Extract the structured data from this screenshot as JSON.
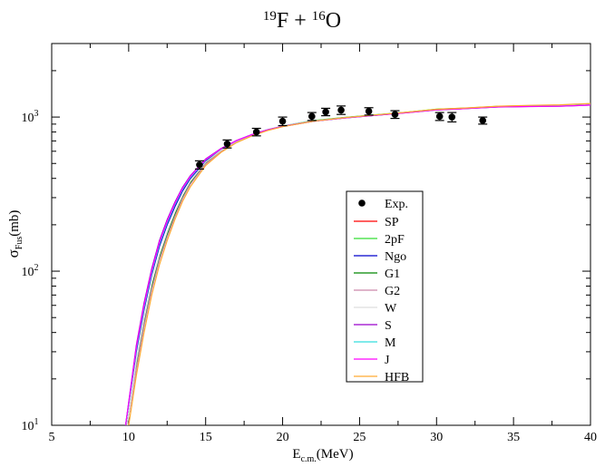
{
  "chart_data": {
    "type": "line",
    "title": {
      "mass_a": "19",
      "element_a": "F",
      "plus": " + ",
      "mass_b": "16",
      "element_b": "O"
    },
    "xlabel": {
      "main": "E",
      "sub": "c.m.",
      "unit": "(MeV)"
    },
    "ylabel": {
      "main": "σ",
      "sub": "Fus",
      "unit": "(mb)"
    },
    "xlim": [
      5,
      40
    ],
    "ylim": [
      10,
      3000
    ],
    "yscale": "log",
    "x_ticks": [
      5,
      10,
      15,
      20,
      25,
      30,
      35,
      40
    ],
    "x_tick_labels": [
      "5",
      "10",
      "15",
      "20",
      "25",
      "30",
      "35",
      "40"
    ],
    "y_ticks": [
      {
        "value": 10,
        "base": "10",
        "exp": "1"
      },
      {
        "value": 100,
        "base": "10",
        "exp": "2"
      },
      {
        "value": 1000,
        "base": "10",
        "exp": "3"
      }
    ],
    "legend_placement": "center-right",
    "experimental": {
      "name": "Exp.",
      "points": [
        {
          "x": 14.6,
          "y": 490,
          "err": 30
        },
        {
          "x": 16.4,
          "y": 670,
          "err": 40
        },
        {
          "x": 18.3,
          "y": 800,
          "err": 45
        },
        {
          "x": 20.0,
          "y": 940,
          "err": 60
        },
        {
          "x": 21.9,
          "y": 1010,
          "err": 60
        },
        {
          "x": 22.8,
          "y": 1080,
          "err": 60
        },
        {
          "x": 23.8,
          "y": 1110,
          "err": 70
        },
        {
          "x": 25.6,
          "y": 1090,
          "err": 60
        },
        {
          "x": 27.3,
          "y": 1040,
          "err": 60
        },
        {
          "x": 30.2,
          "y": 1010,
          "err": 60
        },
        {
          "x": 31.0,
          "y": 1000,
          "err": 70
        },
        {
          "x": 33.0,
          "y": 950,
          "err": 50
        }
      ]
    },
    "series": [
      {
        "name": "SP",
        "color": "#ff0000",
        "x": [
          9.9,
          10.5,
          11,
          11.5,
          12,
          12.5,
          13,
          13.5,
          14,
          15,
          16,
          17,
          18,
          19,
          20,
          22,
          24,
          26,
          28,
          30,
          32,
          34,
          36,
          38,
          40
        ],
        "y": [
          10,
          24,
          45,
          78,
          120,
          170,
          230,
          300,
          370,
          500,
          600,
          690,
          760,
          820,
          870,
          940,
          990,
          1030,
          1070,
          1120,
          1140,
          1170,
          1180,
          1180,
          1200
        ]
      },
      {
        "name": "2pF",
        "color": "#33dd33",
        "x": [
          9.9,
          10.5,
          11,
          11.5,
          12,
          12.5,
          13,
          13.5,
          14,
          15,
          16,
          17,
          18,
          19,
          20,
          22,
          24,
          26,
          28,
          30,
          32,
          34,
          36,
          38,
          40
        ],
        "y": [
          10,
          25,
          47,
          80,
          124,
          175,
          236,
          306,
          376,
          505,
          605,
          695,
          765,
          825,
          875,
          950,
          995,
          1035,
          1075,
          1125,
          1145,
          1175,
          1185,
          1190,
          1210
        ]
      },
      {
        "name": "Ngo",
        "color": "#0000cc",
        "x": [
          9.8,
          10.5,
          11,
          11.5,
          12,
          12.5,
          13,
          13.5,
          14,
          15,
          16,
          17,
          18,
          19,
          20,
          22,
          24,
          26,
          28,
          30,
          32,
          34,
          36,
          38,
          40
        ],
        "y": [
          10,
          30,
          56,
          95,
          145,
          200,
          262,
          332,
          398,
          520,
          615,
          700,
          768,
          826,
          872,
          942,
          988,
          1028,
          1068,
          1116,
          1138,
          1165,
          1175,
          1180,
          1200
        ]
      },
      {
        "name": "G1",
        "color": "#008800",
        "x": [
          9.9,
          10.5,
          11,
          11.5,
          12,
          12.5,
          13,
          13.5,
          14,
          15,
          16,
          17,
          18,
          19,
          20,
          22,
          24,
          26,
          28,
          30,
          32,
          34,
          36,
          38,
          40
        ],
        "y": [
          10,
          24,
          46,
          79,
          122,
          172,
          233,
          303,
          373,
          502,
          603,
          693,
          762,
          822,
          872,
          945,
          992,
          1032,
          1072,
          1122,
          1142,
          1172,
          1182,
          1186,
          1206
        ]
      },
      {
        "name": "G2",
        "color": "#cc88aa",
        "x": [
          9.9,
          10.5,
          11,
          11.5,
          12,
          12.5,
          13,
          13.5,
          14,
          15,
          16,
          17,
          18,
          19,
          20,
          22,
          24,
          26,
          28,
          30,
          32,
          34,
          36,
          38,
          40
        ],
        "y": [
          10,
          23,
          44,
          76,
          118,
          167,
          226,
          296,
          366,
          496,
          598,
          688,
          758,
          818,
          868,
          938,
          988,
          1028,
          1068,
          1118,
          1138,
          1168,
          1178,
          1182,
          1202
        ]
      },
      {
        "name": "W",
        "color": "#dddddd",
        "x": [
          9.9,
          10.5,
          11,
          11.5,
          12,
          12.5,
          13,
          13.5,
          14,
          15,
          16,
          17,
          18,
          19,
          20,
          22,
          24,
          26,
          28,
          30,
          32,
          34,
          36,
          38,
          40
        ],
        "y": [
          10,
          26,
          49,
          84,
          128,
          180,
          242,
          312,
          382,
          510,
          608,
          697,
          766,
          826,
          874,
          946,
          992,
          1032,
          1072,
          1120,
          1140,
          1168,
          1178,
          1184,
          1204
        ]
      },
      {
        "name": "S",
        "color": "#9900cc",
        "x": [
          9.8,
          10.5,
          11,
          11.5,
          12,
          12.5,
          13,
          13.5,
          14,
          15,
          16,
          17,
          18,
          19,
          20,
          22,
          24,
          26,
          28,
          30,
          32,
          34,
          36,
          38,
          40
        ],
        "y": [
          10,
          33,
          62,
          104,
          158,
          216,
          280,
          350,
          415,
          535,
          625,
          705,
          770,
          826,
          870,
          940,
          985,
          1025,
          1065,
          1112,
          1135,
          1162,
          1170,
          1175,
          1195
        ]
      },
      {
        "name": "M",
        "color": "#33dddd",
        "x": [
          9.8,
          10.5,
          11,
          11.5,
          12,
          12.5,
          13,
          13.5,
          14,
          15,
          16,
          17,
          18,
          19,
          20,
          22,
          24,
          26,
          28,
          30,
          32,
          34,
          36,
          38,
          40
        ],
        "y": [
          10,
          31,
          58,
          98,
          150,
          206,
          270,
          340,
          405,
          527,
          620,
          702,
          769,
          826,
          871,
          941,
          987,
          1027,
          1067,
          1114,
          1137,
          1164,
          1174,
          1178,
          1198
        ]
      },
      {
        "name": "J",
        "color": "#ff00ff",
        "x": [
          9.8,
          10.5,
          11,
          11.5,
          12,
          12.5,
          13,
          13.5,
          14,
          15,
          16,
          17,
          18,
          19,
          20,
          22,
          24,
          26,
          28,
          30,
          32,
          34,
          36,
          38,
          40
        ],
        "y": [
          10,
          32,
          60,
          101,
          154,
          211,
          275,
          345,
          410,
          530,
          622,
          703,
          769,
          825,
          870,
          940,
          986,
          1026,
          1066,
          1113,
          1136,
          1163,
          1172,
          1176,
          1196
        ]
      },
      {
        "name": "HFB",
        "color": "#ffaa33",
        "x": [
          10.0,
          10.5,
          11,
          11.5,
          12,
          12.5,
          13,
          13.5,
          14,
          15,
          16,
          17,
          18,
          19,
          20,
          22,
          24,
          26,
          28,
          30,
          32,
          34,
          36,
          38,
          40
        ],
        "y": [
          10,
          21,
          40,
          70,
          110,
          158,
          216,
          284,
          352,
          485,
          590,
          682,
          754,
          816,
          866,
          940,
          990,
          1032,
          1074,
          1124,
          1146,
          1176,
          1190,
          1200,
          1225
        ]
      }
    ]
  }
}
